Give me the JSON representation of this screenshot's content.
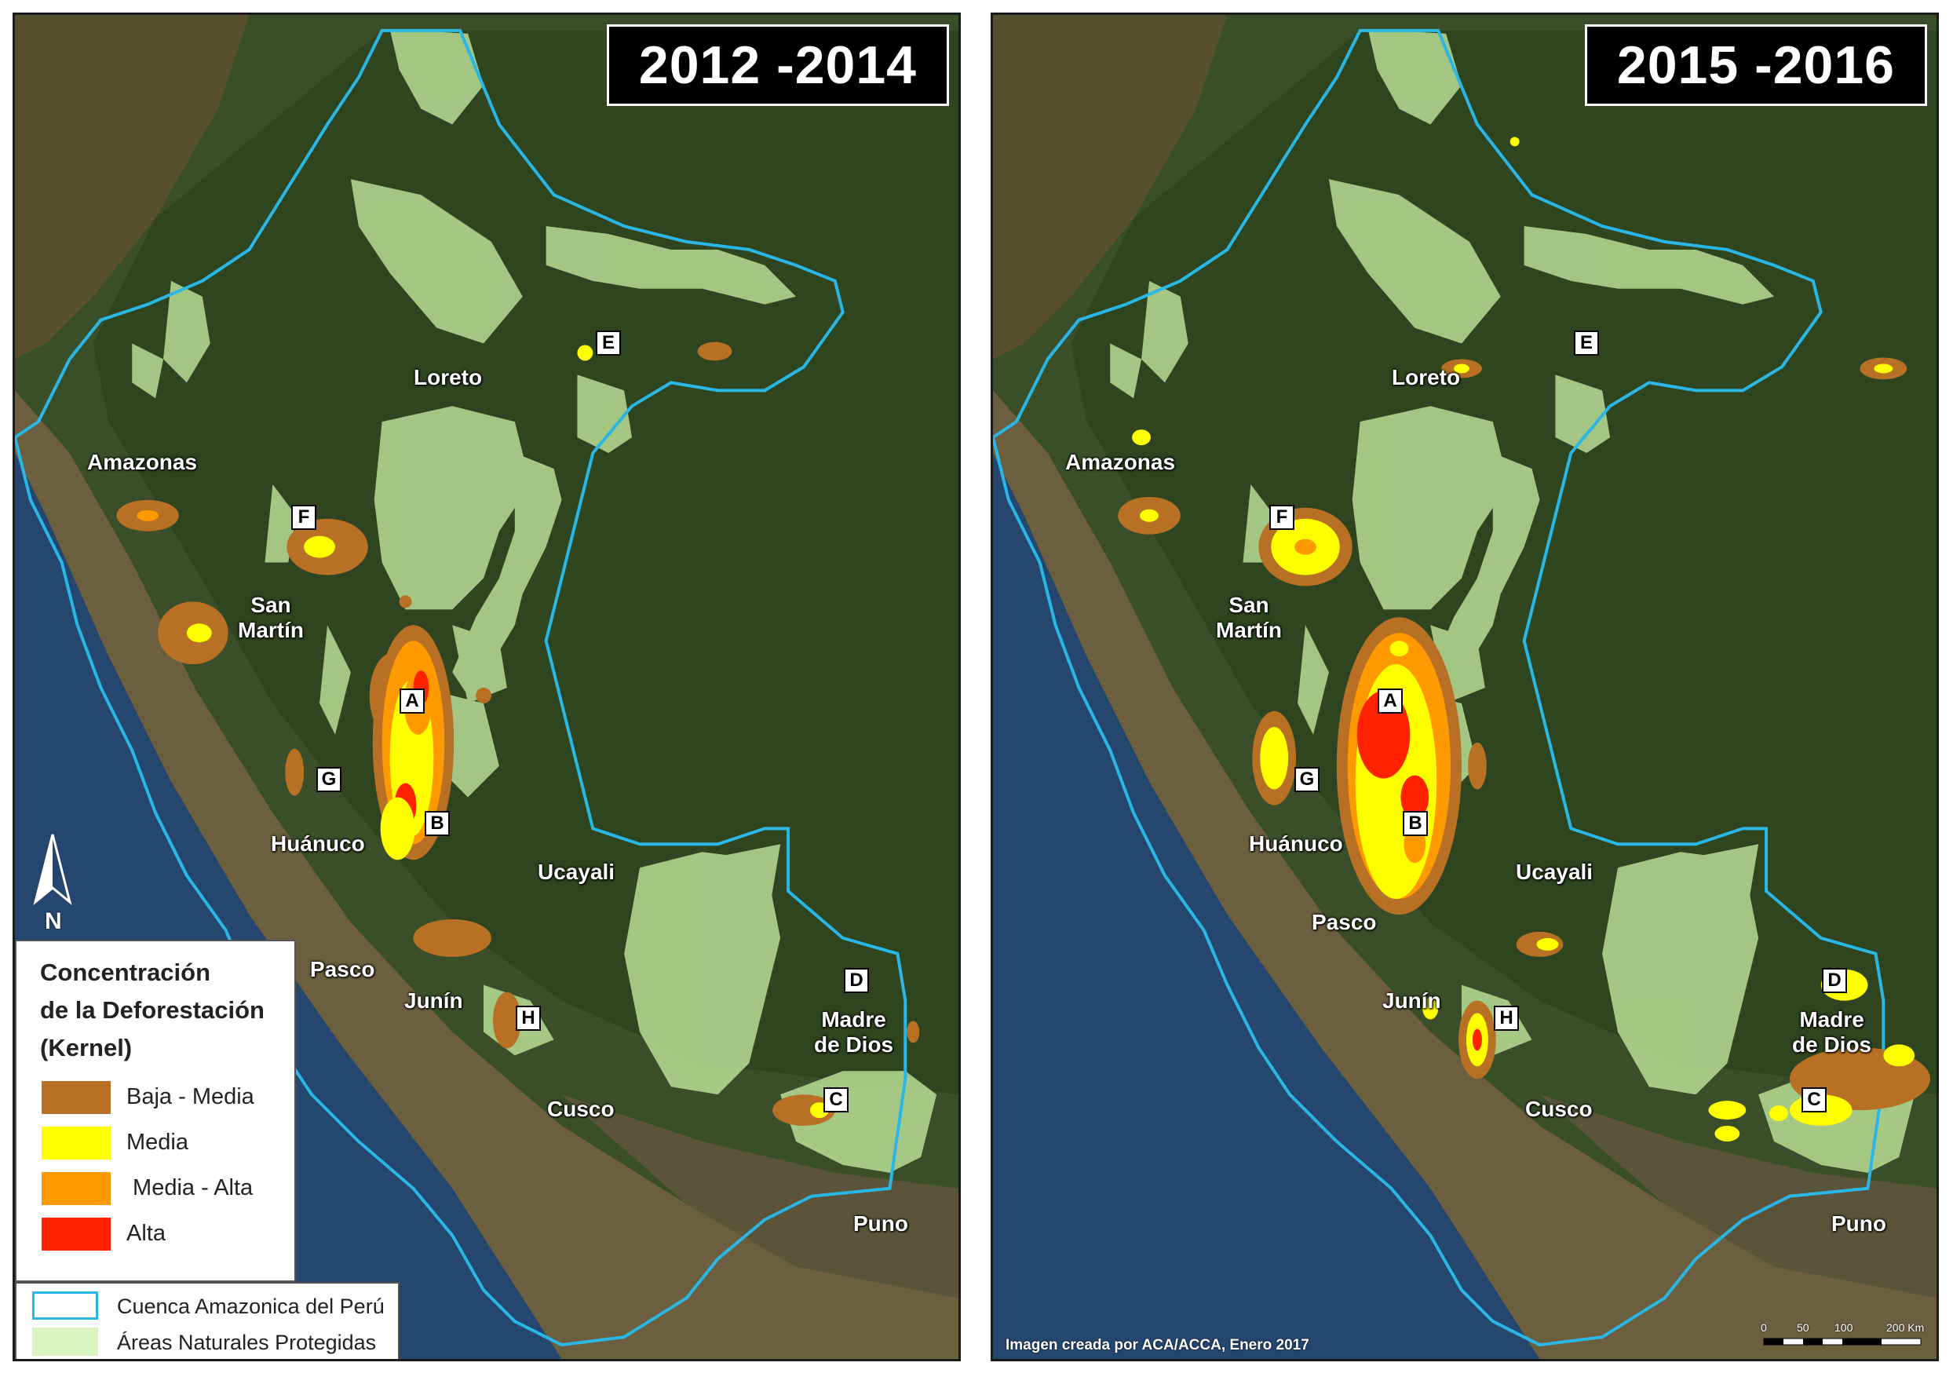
{
  "panels": [
    {
      "period": "2012 -2014"
    },
    {
      "period": "2015 -2016"
    }
  ],
  "regions": {
    "loreto": "Loreto",
    "amazonas": "Amazonas",
    "san_martin": "San\nMartín",
    "huanuco": "Huánuco",
    "ucayali": "Ucayali",
    "pasco": "Pasco",
    "junin": "Junín",
    "madre_de_dios": "Madre\nde Dios",
    "cusco": "Cusco",
    "puno": "Puno"
  },
  "markers": [
    "A",
    "B",
    "C",
    "D",
    "E",
    "F",
    "G",
    "H"
  ],
  "north_label": "N",
  "legend": {
    "title": "Concentración\nde la Deforestación\n(Kernel)",
    "classes": [
      {
        "label": "Baja - Media",
        "color": "#b87124"
      },
      {
        "label": "Media",
        "color": "#ffff00"
      },
      {
        "label": " Media - Alta",
        "color": "#ff9900"
      },
      {
        "label": "Alta",
        "color": "#ff2200"
      }
    ],
    "boundary_label": "Cuenca Amazonica del Perú",
    "boundary_color": "#2bb7e6",
    "protected_label": "Áreas Naturales Protegidas",
    "protected_color": "#d9f5c4"
  },
  "credit": "Imagen creada por ACA/ACCA, Enero 2017",
  "scale": {
    "ticks": [
      "0",
      "50",
      "100",
      "200 Km"
    ]
  },
  "colors": {
    "forest": "#2f4a22",
    "andes": "#6b6043",
    "ocean": "#274a7a",
    "protected_area": "#bde39a"
  }
}
